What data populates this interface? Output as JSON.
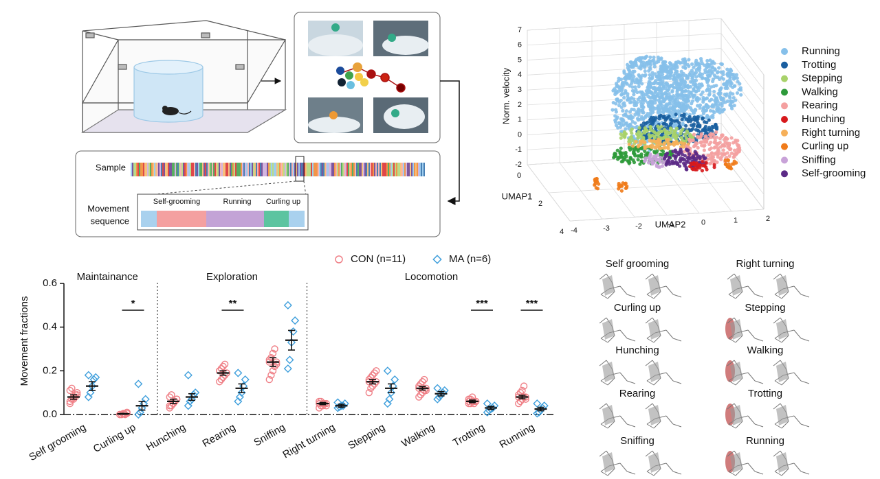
{
  "setup": {
    "sample_label": "Sample",
    "sequence_label": [
      "Movement",
      "sequence"
    ],
    "segments": [
      "Self-grooming",
      "Running",
      "Curling up"
    ]
  },
  "chart_data": [
    {
      "type": "scatter3d",
      "zlabel": "Norm. velocity",
      "xlabel": "UMAP1",
      "ylabel": "UMAP2",
      "xlim": [
        0,
        4
      ],
      "xticks": [
        0,
        2,
        4
      ],
      "ylim": [
        -4,
        2
      ],
      "yticks": [
        -4,
        -3,
        -2,
        -1,
        0,
        1,
        2
      ],
      "zlim": [
        -2,
        7
      ],
      "zticks": [
        -2,
        -1,
        0,
        1,
        2,
        3,
        4,
        5,
        6,
        7
      ],
      "series": [
        {
          "name": "Running",
          "color": "#86c0ea"
        },
        {
          "name": "Trotting",
          "color": "#1a5fa0"
        },
        {
          "name": "Stepping",
          "color": "#a8d26a"
        },
        {
          "name": "Walking",
          "color": "#2e9a3a"
        },
        {
          "name": "Rearing",
          "color": "#f4a0a0"
        },
        {
          "name": "Hunching",
          "color": "#d7191c"
        },
        {
          "name": "Right turning",
          "color": "#f6b05a"
        },
        {
          "name": "Curling up",
          "color": "#f07b1a"
        },
        {
          "name": "Sniffing",
          "color": "#c8a2d8"
        },
        {
          "name": "Self-grooming",
          "color": "#5b2a86"
        }
      ]
    },
    {
      "type": "dot",
      "ylabel": "Movement fractions",
      "ylim": [
        0,
        0.6
      ],
      "yticks": [
        {
          "value": 0,
          "label": "0.0"
        },
        0.2,
        0.4,
        0.6
      ],
      "groups": [
        {
          "label": "Maintainance",
          "categories": [
            "Self grooming",
            "Curling up"
          ]
        },
        {
          "label": "Exploration",
          "categories": [
            "Hunching",
            "Rearing",
            "Sniffing"
          ]
        },
        {
          "label": "Locomotion",
          "categories": [
            "Right turning",
            "Stepping",
            "Walking",
            "Trotting",
            "Running"
          ]
        }
      ],
      "significance": [
        null,
        "*",
        null,
        "**",
        null,
        null,
        null,
        null,
        "***",
        "***"
      ],
      "series": [
        {
          "name": "CON (n=11)",
          "color": "#ef7f86",
          "marker": "circle",
          "values": [
            0.08,
            0.003,
            0.06,
            0.19,
            0.24,
            0.05,
            0.15,
            0.12,
            0.06,
            0.08
          ],
          "errors": [
            0.01,
            0.002,
            0.01,
            0.01,
            0.02,
            0.005,
            0.01,
            0.008,
            0.006,
            0.008
          ],
          "points": [
            [
              0.06,
              0.07,
              0.08,
              0.09,
              0.1,
              0.11,
              0.12,
              0.07,
              0.08,
              0.09,
              0.05
            ],
            [
              0,
              0,
              0.005,
              0,
              0.01,
              0,
              0,
              0.002,
              0,
              0.005,
              0
            ],
            [
              0.03,
              0.04,
              0.05,
              0.06,
              0.07,
              0.08,
              0.09,
              0.05,
              0.06,
              0.07,
              0.04
            ],
            [
              0.15,
              0.16,
              0.17,
              0.18,
              0.19,
              0.2,
              0.21,
              0.22,
              0.23,
              0.19,
              0.2
            ],
            [
              0.16,
              0.18,
              0.2,
              0.22,
              0.24,
              0.25,
              0.26,
              0.28,
              0.3,
              0.23,
              0.24
            ],
            [
              0.03,
              0.04,
              0.04,
              0.05,
              0.05,
              0.06,
              0.06,
              0.05,
              0.05,
              0.04,
              0.05
            ],
            [
              0.1,
              0.12,
              0.13,
              0.14,
              0.15,
              0.16,
              0.17,
              0.18,
              0.19,
              0.2,
              0.15
            ],
            [
              0.08,
              0.09,
              0.1,
              0.11,
              0.12,
              0.13,
              0.14,
              0.15,
              0.16,
              0.11,
              0.12
            ],
            [
              0.05,
              0.05,
              0.06,
              0.06,
              0.06,
              0.07,
              0.07,
              0.08,
              0.05,
              0.06,
              0.06
            ],
            [
              0.05,
              0.06,
              0.07,
              0.08,
              0.08,
              0.09,
              0.1,
              0.11,
              0.13,
              0.07,
              0.08
            ]
          ]
        },
        {
          "name": "MA (n=6)",
          "color": "#3f9fdc",
          "marker": "diamond",
          "values": [
            0.13,
            0.04,
            0.08,
            0.12,
            0.34,
            0.04,
            0.12,
            0.095,
            0.03,
            0.025
          ],
          "errors": [
            0.02,
            0.02,
            0.015,
            0.02,
            0.045,
            0.007,
            0.02,
            0.01,
            0.007,
            0.008
          ],
          "points": [
            [
              0.08,
              0.1,
              0.13,
              0.16,
              0.17,
              0.18
            ],
            [
              0,
              0.01,
              0.03,
              0.05,
              0.07,
              0.14
            ],
            [
              0.04,
              0.06,
              0.07,
              0.09,
              0.1,
              0.18
            ],
            [
              0.06,
              0.08,
              0.1,
              0.13,
              0.16,
              0.19
            ],
            [
              0.21,
              0.25,
              0.33,
              0.38,
              0.43,
              0.5
            ],
            [
              0.03,
              0.035,
              0.04,
              0.04,
              0.05,
              0.055
            ],
            [
              0.05,
              0.07,
              0.1,
              0.13,
              0.16,
              0.2
            ],
            [
              0.07,
              0.08,
              0.09,
              0.1,
              0.11,
              0.12
            ],
            [
              0.01,
              0.02,
              0.025,
              0.03,
              0.04,
              0.05
            ],
            [
              0.005,
              0.01,
              0.02,
              0.03,
              0.04,
              0.05
            ]
          ]
        }
      ]
    }
  ],
  "poses": [
    "Self grooming",
    "Curling up",
    "Hunching",
    "Rearing",
    "Sniffing",
    "Right turning",
    "Stepping",
    "Walking",
    "Trotting",
    "Running"
  ]
}
